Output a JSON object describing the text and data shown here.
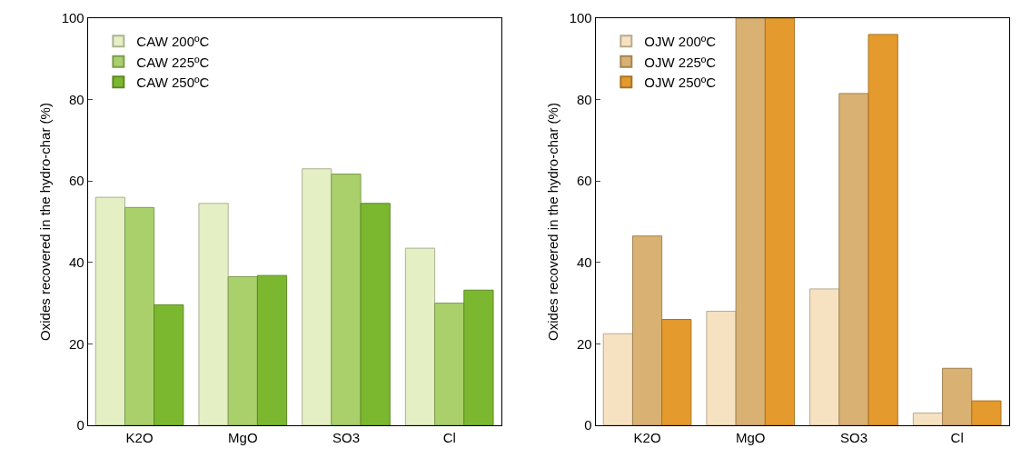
{
  "chart_data": [
    {
      "type": "bar",
      "categories": [
        "K2O",
        "MgO",
        "SO3",
        "Cl"
      ],
      "ylabel": "Oxides recovered in the hydro-char (%)",
      "ylim": [
        0,
        100
      ],
      "yticks": [
        0,
        20,
        40,
        60,
        80,
        100
      ],
      "legend": "top left",
      "series": [
        {
          "name": "CAW 200ºC",
          "color": "#e4efc4",
          "values": [
            56,
            54.5,
            63,
            43.5
          ]
        },
        {
          "name": "CAW 225ºC",
          "color": "#a9d06b",
          "values": [
            53.5,
            36.5,
            61.7,
            30
          ]
        },
        {
          "name": "CAW 250ºC",
          "color": "#7cb82f",
          "values": [
            29.6,
            36.8,
            54.5,
            33.2
          ]
        }
      ]
    },
    {
      "type": "bar",
      "categories": [
        "K2O",
        "MgO",
        "SO3",
        "Cl"
      ],
      "ylabel": "Oxides recovered in the hydro-char (%)",
      "ylim": [
        0,
        100
      ],
      "yticks": [
        0,
        20,
        40,
        60,
        80,
        100
      ],
      "legend": "top left",
      "series": [
        {
          "name": "OJW 200ºC",
          "color": "#f6e2c0",
          "values": [
            22.5,
            28,
            33.5,
            3
          ]
        },
        {
          "name": "OJW 225ºC",
          "color": "#d9b172",
          "values": [
            46.5,
            100,
            81.5,
            14
          ]
        },
        {
          "name": "OJW 250ºC",
          "color": "#e49a2c",
          "values": [
            26,
            100,
            96,
            6
          ]
        }
      ]
    }
  ]
}
